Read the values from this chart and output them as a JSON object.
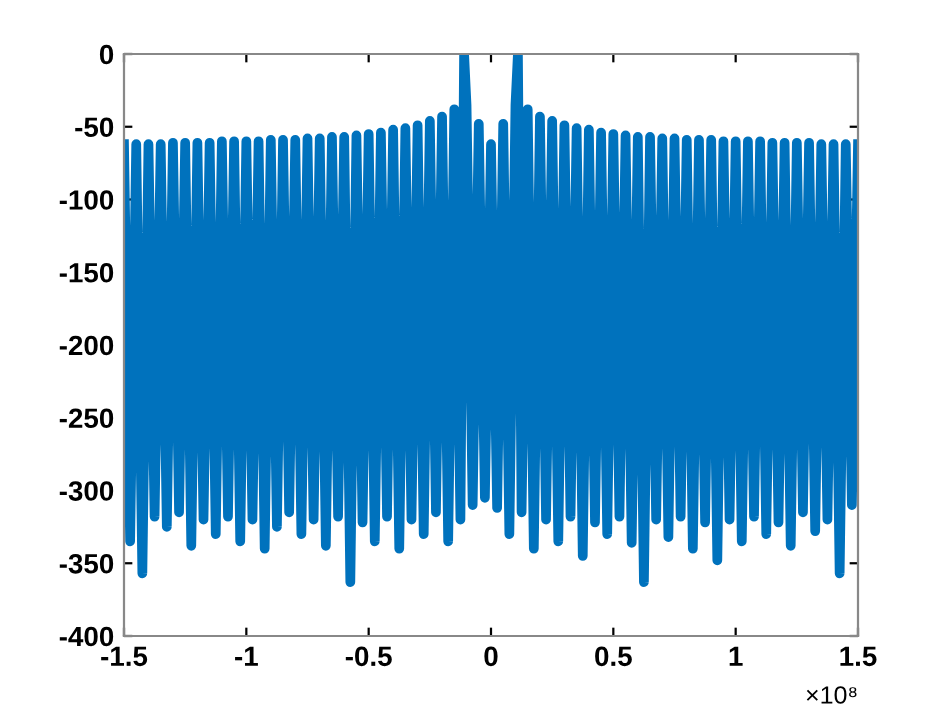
{
  "chart_data": {
    "type": "line",
    "xlim": [
      -1.5,
      1.5
    ],
    "ylim": [
      -400,
      0
    ],
    "xticks": [
      -1.5,
      -1,
      -0.5,
      0,
      0.5,
      1,
      1.5
    ],
    "yticks": [
      -400,
      -350,
      -300,
      -250,
      -200,
      -150,
      -100,
      -50,
      0
    ],
    "annotations": [
      "×10⁸"
    ],
    "grid": false,
    "line_style": "solid",
    "marker": "none",
    "series": [
      {
        "color": "#0072bd",
        "x": [
          -1.5,
          -1.475,
          -1.45,
          -1.425,
          -1.4,
          -1.375,
          -1.35,
          -1.325,
          -1.3,
          -1.275,
          -1.25,
          -1.225,
          -1.2,
          -1.175,
          -1.15,
          -1.125,
          -1.1,
          -1.075,
          -1.05,
          -1.025,
          -1.0,
          -0.975,
          -0.95,
          -0.925,
          -0.9,
          -0.875,
          -0.85,
          -0.825,
          -0.8,
          -0.775,
          -0.75,
          -0.725,
          -0.7,
          -0.675,
          -0.65,
          -0.625,
          -0.6,
          -0.575,
          -0.55,
          -0.525,
          -0.5,
          -0.475,
          -0.45,
          -0.425,
          -0.4,
          -0.375,
          -0.35,
          -0.325,
          -0.3,
          -0.275,
          -0.25,
          -0.225,
          -0.2,
          -0.175,
          -0.15,
          -0.125,
          -0.11,
          -0.1,
          -0.075,
          -0.05,
          -0.025,
          0,
          0.025,
          0.05,
          0.075,
          0.1,
          0.11,
          0.125,
          0.15,
          0.175,
          0.2,
          0.225,
          0.25,
          0.275,
          0.3,
          0.325,
          0.35,
          0.375,
          0.4,
          0.425,
          0.45,
          0.475,
          0.5,
          0.525,
          0.55,
          0.575,
          0.6,
          0.625,
          0.65,
          0.675,
          0.7,
          0.725,
          0.75,
          0.775,
          0.8,
          0.825,
          0.85,
          0.875,
          0.9,
          0.925,
          0.95,
          0.975,
          1.0,
          1.025,
          1.05,
          1.075,
          1.1,
          1.125,
          1.15,
          1.175,
          1.2,
          1.225,
          1.25,
          1.275,
          1.3,
          1.325,
          1.35,
          1.375,
          1.4,
          1.425,
          1.45,
          1.475,
          1.5
        ],
        "values": [
          -62,
          -335,
          -62,
          -357,
          -62,
          -318,
          -62,
          -325,
          -61,
          -315,
          -61,
          -338,
          -61,
          -320,
          -61,
          -330,
          -60,
          -318,
          -60,
          -335,
          -60,
          -320,
          -60,
          -340,
          -59,
          -325,
          -59,
          -315,
          -59,
          -330,
          -58,
          -320,
          -58,
          -338,
          -57,
          -318,
          -57,
          -363,
          -56,
          -322,
          -55,
          -335,
          -54,
          -318,
          -52,
          -340,
          -51,
          -320,
          -49,
          -330,
          -46,
          -315,
          -43,
          -335,
          -38,
          -320,
          0,
          -35,
          -310,
          -48,
          -305,
          -62,
          -312,
          -48,
          -330,
          -35,
          0,
          -315,
          -38,
          -340,
          -43,
          -320,
          -46,
          -335,
          -49,
          -318,
          -51,
          -345,
          -52,
          -322,
          -54,
          -330,
          -55,
          -318,
          -56,
          -336,
          -57,
          -363,
          -57,
          -320,
          -58,
          -332,
          -58,
          -318,
          -59,
          -340,
          -59,
          -322,
          -59,
          -348,
          -60,
          -320,
          -60,
          -335,
          -60,
          -318,
          -60,
          -330,
          -61,
          -322,
          -61,
          -338,
          -61,
          -315,
          -61,
          -328,
          -62,
          -320,
          -62,
          -357,
          -62,
          -310,
          -62
        ]
      }
    ]
  }
}
